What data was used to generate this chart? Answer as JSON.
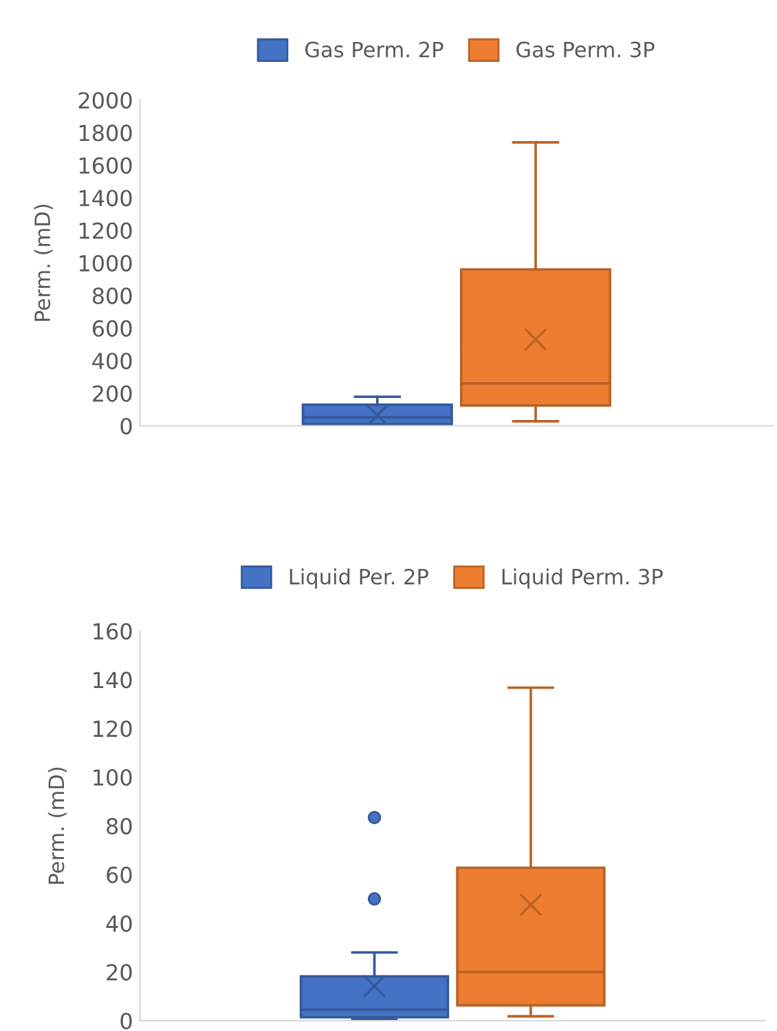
{
  "chart_data": [
    {
      "type": "box",
      "ylabel": "Perm. (mD)",
      "categories": [
        null
      ],
      "ylim": [
        0,
        2000
      ],
      "yticks": [
        0,
        200,
        400,
        600,
        800,
        1000,
        1200,
        1400,
        1600,
        1800,
        2000
      ],
      "legend": "top",
      "series": [
        {
          "name": "Gas Perm. 2P",
          "color": "#4472c4",
          "boxes": [
            {
              "low": 5,
              "q1": 10,
              "median": 52,
              "q3": 130,
              "high": 178,
              "mean": 65
            }
          ]
        },
        {
          "name": "Gas Perm. 3P",
          "color": "#ed7d31",
          "boxes": [
            {
              "low": 28,
              "q1": 125,
              "median": 260,
              "q3": 960,
              "high": 1740,
              "mean": 530
            }
          ]
        }
      ]
    },
    {
      "type": "box",
      "ylabel": "Perm. (mD)",
      "categories": [
        null
      ],
      "ylim": [
        0,
        160
      ],
      "yticks": [
        0,
        20,
        40,
        60,
        80,
        100,
        120,
        140,
        160
      ],
      "legend": "top",
      "series": [
        {
          "name": "Liquid Per. 2P",
          "color": "#4472c4",
          "boxes": [
            {
              "low": 0.8,
              "q1": 1.4,
              "median": 4.5,
              "q3": 18.2,
              "high": 28,
              "mean": 14.2,
              "outliers": [
                83.4,
                50
              ]
            }
          ]
        },
        {
          "name": "Liquid Perm. 3P",
          "color": "#ed7d31",
          "boxes": [
            {
              "low": 1.8,
              "q1": 6.3,
              "median": 20,
              "q3": 62.8,
              "high": 136.7,
              "mean": 47.6
            }
          ]
        }
      ]
    }
  ]
}
